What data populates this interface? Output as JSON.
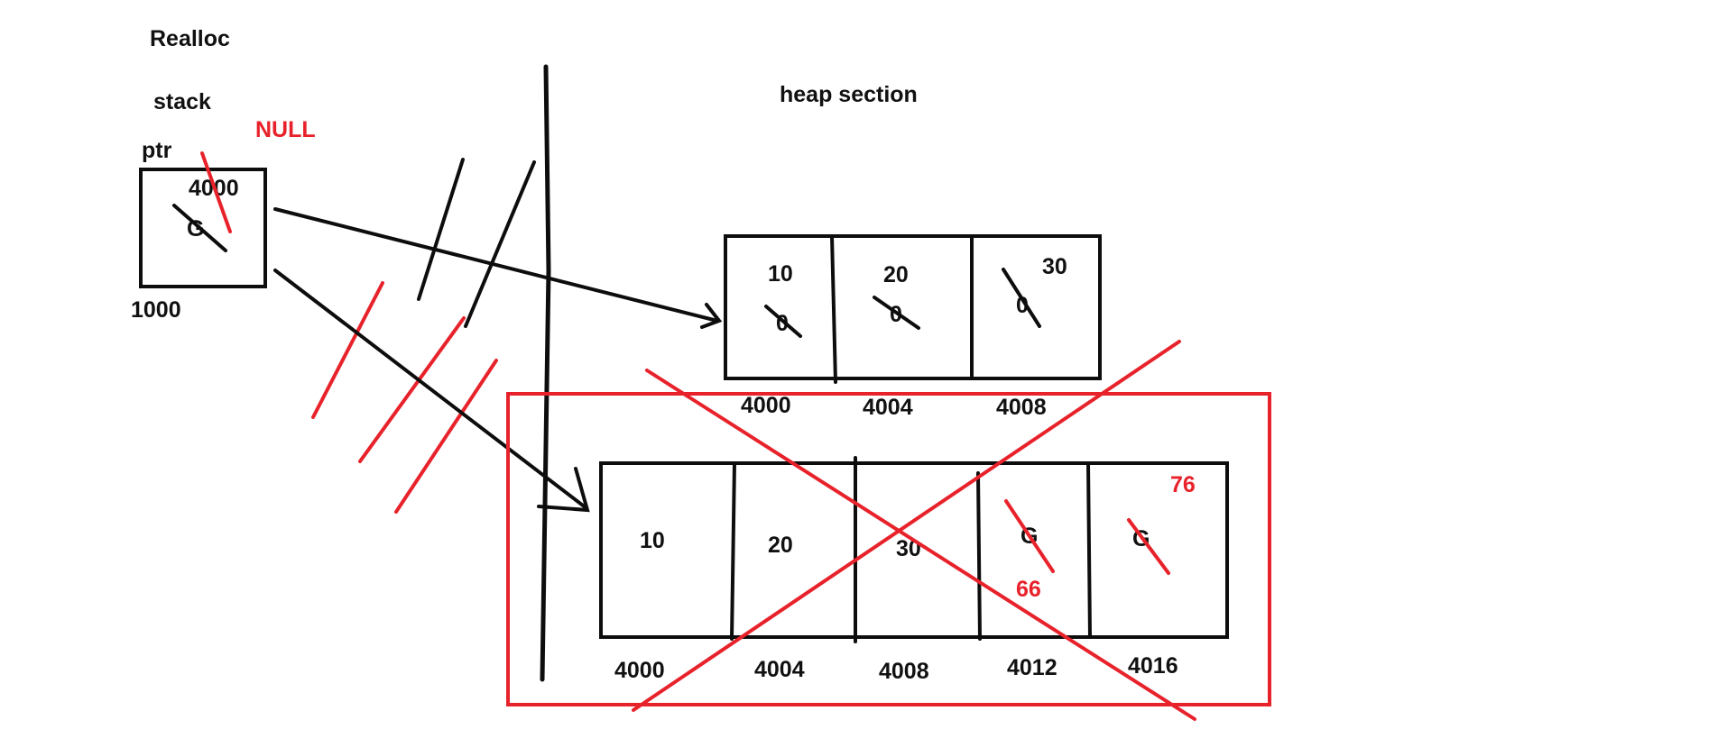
{
  "title": "Realloc",
  "stack": {
    "label": "stack",
    "ptr_label": "ptr",
    "ptr_value": "4000",
    "ptr_old_value": "G",
    "ptr_address": "1000",
    "null_note": "NULL"
  },
  "heap": {
    "label": "heap section",
    "old_block": {
      "cells": [
        {
          "value": "10",
          "old": "0",
          "address": "4000"
        },
        {
          "value": "20",
          "old": "0",
          "address": "4004"
        },
        {
          "value": "30",
          "old": "0",
          "address": "4008"
        }
      ]
    },
    "new_block": {
      "cells": [
        {
          "value": "10",
          "address": "4000"
        },
        {
          "value": "20",
          "address": "4004"
        },
        {
          "value": "30",
          "address": "4008"
        },
        {
          "value": "66",
          "old": "G",
          "address": "4012"
        },
        {
          "value": "76",
          "old": "G",
          "address": "4016"
        }
      ]
    }
  },
  "colors": {
    "ink": "#0d0d0d",
    "red": "#e8222b",
    "background": "#ffffff"
  }
}
